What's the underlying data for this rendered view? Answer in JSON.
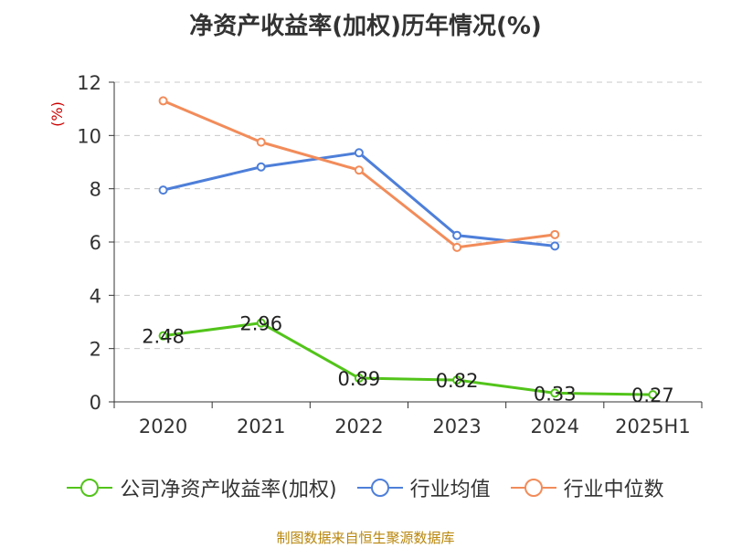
{
  "chart_data": {
    "type": "line",
    "title": "净资产收益率(加权)历年情况(%)",
    "ylabel": "(%)",
    "xlabel": "",
    "categories": [
      "2020",
      "2021",
      "2022",
      "2023",
      "2024",
      "2025H1"
    ],
    "ylim": [
      0,
      12
    ],
    "yticks": [
      0,
      2,
      4,
      6,
      8,
      10,
      12
    ],
    "grid": true,
    "legend_position": "bottom",
    "series": [
      {
        "name": "公司净资产收益率(加权)",
        "color": "#52c41a",
        "values": [
          2.48,
          2.96,
          0.89,
          0.82,
          0.33,
          0.27
        ],
        "data_labels": [
          "2.48",
          "2.96",
          "0.89",
          "0.82",
          "0.33",
          "0.27"
        ]
      },
      {
        "name": "行业均值",
        "color": "#4e7fd9",
        "values": [
          7.95,
          8.82,
          9.35,
          6.25,
          5.85,
          null
        ]
      },
      {
        "name": "行业中位数",
        "color": "#f28c5a",
        "values": [
          11.3,
          9.75,
          8.7,
          5.8,
          6.28,
          null
        ]
      }
    ]
  },
  "source": "制图数据来自恒生聚源数据库"
}
